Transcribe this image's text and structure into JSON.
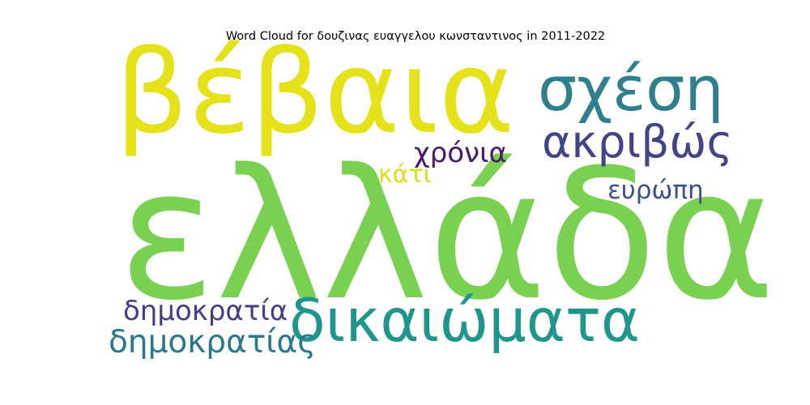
{
  "title": "Word Cloud for δουζινας ευαγγελου κωνσταντινος in 2011-2022",
  "words": [
    {
      "text": "ελλάδα",
      "color": "#7ad151"
    },
    {
      "text": "βέβαια",
      "color": "#e5e21c"
    },
    {
      "text": "σχέση",
      "color": "#2f7f8c"
    },
    {
      "text": "ακριβώς",
      "color": "#414487"
    },
    {
      "text": "χρόνια",
      "color": "#48186a"
    },
    {
      "text": "κάτι",
      "color": "#dedd1d"
    },
    {
      "text": "ευρώπη",
      "color": "#3b518b"
    },
    {
      "text": "δικαιώματα",
      "color": "#1f968b"
    },
    {
      "text": "δημοκρατία",
      "color": "#433e85"
    },
    {
      "text": "δημοκρατίας",
      "color": "#2a788e"
    }
  ]
}
